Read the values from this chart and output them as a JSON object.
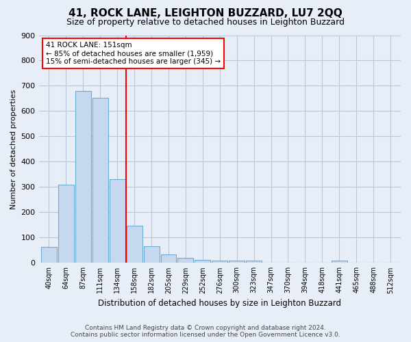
{
  "title": "41, ROCK LANE, LEIGHTON BUZZARD, LU7 2QQ",
  "subtitle": "Size of property relative to detached houses in Leighton Buzzard",
  "xlabel": "Distribution of detached houses by size in Leighton Buzzard",
  "ylabel": "Number of detached properties",
  "bar_labels": [
    "40sqm",
    "64sqm",
    "87sqm",
    "111sqm",
    "134sqm",
    "158sqm",
    "182sqm",
    "205sqm",
    "229sqm",
    "252sqm",
    "276sqm",
    "300sqm",
    "323sqm",
    "347sqm",
    "370sqm",
    "394sqm",
    "418sqm",
    "441sqm",
    "465sqm",
    "488sqm",
    "512sqm"
  ],
  "bar_values": [
    62,
    310,
    680,
    653,
    330,
    148,
    65,
    32,
    20,
    12,
    10,
    10,
    10,
    0,
    0,
    0,
    0,
    8,
    0,
    0,
    0
  ],
  "bar_color": "#c5d8f0",
  "bar_edgecolor": "#6aabd2",
  "property_line_label": "41 ROCK LANE: 151sqm",
  "annotation_line1": "← 85% of detached houses are smaller (1,959)",
  "annotation_line2": "15% of semi-detached houses are larger (345) →",
  "annotation_box_color": "white",
  "annotation_box_edgecolor": "red",
  "vline_color": "red",
  "ylim": [
    0,
    900
  ],
  "yticks": [
    0,
    100,
    200,
    300,
    400,
    500,
    600,
    700,
    800,
    900
  ],
  "footnote1": "Contains HM Land Registry data © Crown copyright and database right 2024.",
  "footnote2": "Contains public sector information licensed under the Open Government Licence v3.0.",
  "bg_color": "#e8eef8",
  "grid_color": "#b8c8dc",
  "vline_xindex": 4.5
}
